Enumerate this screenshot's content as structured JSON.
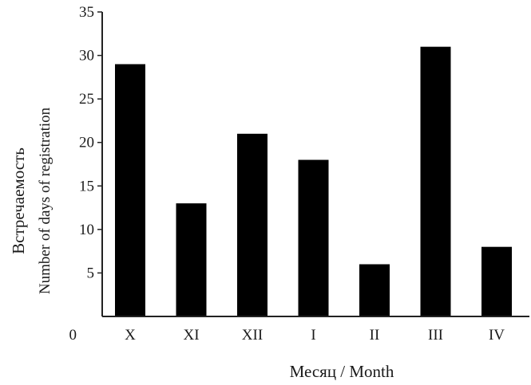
{
  "chart_data": {
    "type": "bar",
    "categories": [
      "X",
      "XI",
      "XII",
      "I",
      "II",
      "III",
      "IV"
    ],
    "values": [
      29,
      13,
      21,
      18,
      6,
      31,
      8
    ],
    "ylabel": "Встречаемость",
    "ylabel_sub": "Number of days of registration",
    "xlabel": "Месяц / Month",
    "ylim": [
      0,
      35
    ],
    "yticks": [
      "0",
      "5",
      "10",
      "15",
      "20",
      "25",
      "30",
      "35"
    ],
    "grid": false,
    "bar_color": "#000000"
  }
}
